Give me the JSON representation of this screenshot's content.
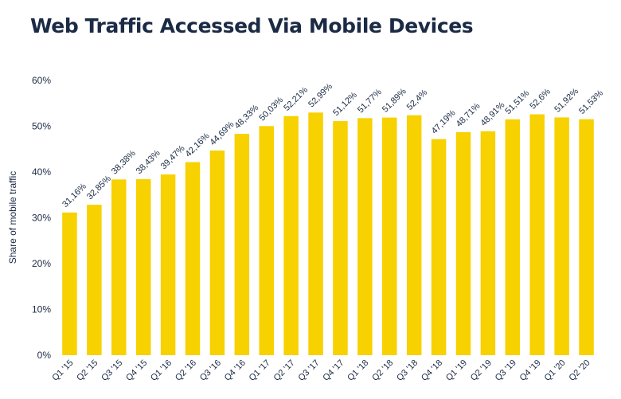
{
  "chart_data": {
    "type": "bar",
    "title": "Web Traffic Accessed Via Mobile Devices",
    "xlabel": "",
    "ylabel": "Share of mobile traffic",
    "ylim": [
      0,
      60
    ],
    "yticks": [
      "0%",
      "10%",
      "20%",
      "30%",
      "40%",
      "50%",
      "60%"
    ],
    "ytick_values": [
      0,
      10,
      20,
      30,
      40,
      50,
      60
    ],
    "grid": false,
    "bar_color": "#f7d100",
    "text_color": "#1b2a45",
    "categories": [
      "Q1 '15",
      "Q2 '15",
      "Q3 '15",
      "Q4 '15",
      "Q1 '16",
      "Q2 '16",
      "Q3 '16",
      "Q4 '16",
      "Q1 '17",
      "Q2 '17",
      "Q3 '17",
      "Q4 '17",
      "Q1 '18",
      "Q2 '18",
      "Q3 '18",
      "Q4 '18",
      "Q1 '19",
      "Q2 '19",
      "Q3 '19",
      "Q4 '19",
      "Q1 '20",
      "Q2 '20"
    ],
    "values": [
      31.16,
      32.85,
      38.38,
      38.43,
      39.47,
      42.16,
      44.69,
      48.33,
      50.03,
      52.21,
      52.99,
      51.12,
      51.77,
      51.89,
      52.4,
      47.19,
      48.71,
      48.91,
      51.51,
      52.6,
      51.92,
      51.53
    ],
    "data_labels": [
      "31,16%",
      "32,85%",
      "38,38%",
      "38,43%",
      "39,47%",
      "42,16%",
      "44,69%",
      "48,33%",
      "50,03%",
      "52,21%",
      "52,99%",
      "51,12%",
      "51,77%",
      "51,89%",
      "52,4%",
      "47,19%",
      "48,71%",
      "48,91%",
      "51,51%",
      "52,6%",
      "51,92%",
      "51,53%"
    ]
  }
}
